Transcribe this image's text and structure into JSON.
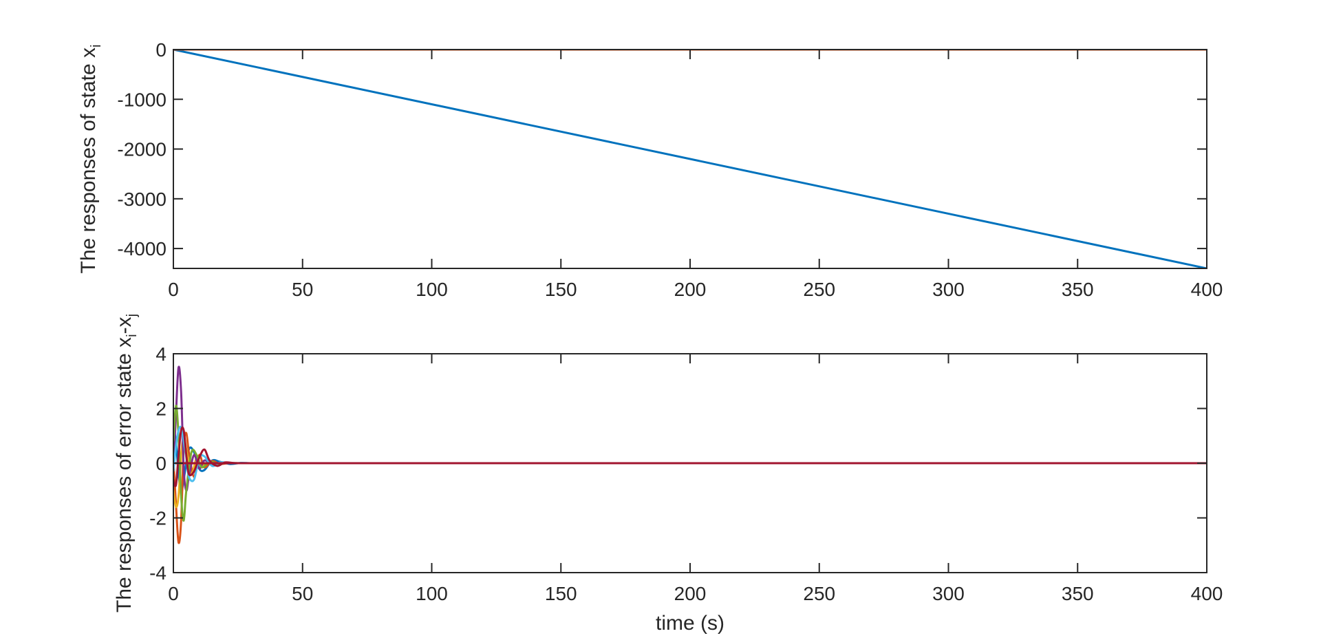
{
  "chart_data": [
    {
      "type": "line",
      "title": "",
      "xlabel": "",
      "ylabel": "The responses of state x",
      "ylabel_subscript": "i",
      "xlim": [
        0,
        400
      ],
      "ylim": [
        -4400,
        0
      ],
      "xticks": [
        0,
        50,
        100,
        150,
        200,
        250,
        300,
        350,
        400
      ],
      "xtick_labels": [
        "0",
        "50",
        "100",
        "150",
        "200",
        "250",
        "300",
        "350",
        "400"
      ],
      "yticks": [
        0,
        -1000,
        -2000,
        -3000,
        -4000
      ],
      "ytick_labels": [
        "0",
        "-1000",
        "-2000",
        "-3000",
        "-4000"
      ],
      "grid": false,
      "series": [
        {
          "color": "#0072BD",
          "x": [
            0,
            400
          ],
          "y": [
            0,
            -4400
          ]
        },
        {
          "color": "#D95319",
          "x": [
            0,
            400
          ],
          "y": [
            0,
            0
          ]
        }
      ]
    },
    {
      "type": "line",
      "title": "",
      "xlabel": "time (s)",
      "ylabel": "The responses of error state x",
      "ylabel_subscript": "i",
      "ylabel_suffix": "-x",
      "ylabel_suffix_subscript": "j",
      "xlim": [
        0,
        400
      ],
      "ylim": [
        -4,
        4
      ],
      "xticks": [
        0,
        50,
        100,
        150,
        200,
        250,
        300,
        350,
        400
      ],
      "xtick_labels": [
        "0",
        "50",
        "100",
        "150",
        "200",
        "250",
        "300",
        "350",
        "400"
      ],
      "yticks": [
        4,
        2,
        0,
        -2,
        -4
      ],
      "ytick_labels": [
        "4",
        "2",
        "0",
        "-2",
        "-4"
      ],
      "grid": false,
      "series": [
        {
          "color": "#0072BD",
          "x": [
            0,
            1,
            2,
            3,
            4,
            6,
            8,
            10,
            12,
            15,
            18,
            22,
            26,
            30,
            35,
            40,
            400
          ],
          "y": [
            1.3,
            0.8,
            -0.4,
            -1.1,
            -0.6,
            0.5,
            0.4,
            -0.2,
            -0.25,
            0.1,
            0.05,
            -0.03,
            0.01,
            0,
            0,
            0,
            0
          ]
        },
        {
          "color": "#D95319",
          "x": [
            0,
            1,
            2,
            3,
            4,
            5,
            6,
            8,
            10,
            12,
            15,
            18,
            22,
            26,
            30,
            400
          ],
          "y": [
            0.2,
            -1.5,
            -2.9,
            -2.1,
            0.6,
            1.1,
            0.4,
            -0.5,
            0.3,
            -0.15,
            0.08,
            -0.03,
            0.01,
            0,
            0,
            0
          ]
        },
        {
          "color": "#EDB120",
          "x": [
            0,
            1,
            2,
            3,
            4,
            5,
            7,
            9,
            11,
            14,
            17,
            20,
            24,
            30,
            400
          ],
          "y": [
            -1.0,
            -1.6,
            -1.2,
            0.3,
            1.0,
            0.5,
            -0.4,
            0.2,
            -0.1,
            0.05,
            -0.02,
            0.01,
            0,
            0,
            0
          ]
        },
        {
          "color": "#7E2F8E",
          "x": [
            0,
            1,
            2,
            3,
            4,
            5,
            6,
            8,
            10,
            12,
            15,
            18,
            22,
            26,
            30,
            400
          ],
          "y": [
            -0.2,
            1.8,
            3.5,
            2.6,
            -0.2,
            -1.0,
            -0.5,
            0.3,
            -0.2,
            0.1,
            -0.04,
            0.02,
            0,
            0,
            0,
            0
          ]
        },
        {
          "color": "#77AC30",
          "x": [
            0,
            1,
            2,
            3,
            4,
            5,
            7,
            9,
            11,
            14,
            17,
            20,
            24,
            30,
            400
          ],
          "y": [
            0.8,
            2.1,
            1.0,
            -1.2,
            -2.1,
            -1.0,
            0.4,
            0.3,
            -0.15,
            0.06,
            -0.02,
            0.01,
            0,
            0,
            0
          ]
        },
        {
          "color": "#4DBEEE",
          "x": [
            0,
            1,
            2,
            3,
            4,
            5,
            6,
            8,
            10,
            12,
            15,
            18,
            22,
            26,
            30,
            400
          ],
          "y": [
            -0.3,
            0.6,
            1.2,
            1.3,
            0.8,
            0.2,
            -0.5,
            -0.6,
            0.2,
            0.25,
            -0.1,
            0.03,
            0.01,
            0,
            0,
            0
          ]
        },
        {
          "color": "#A2142F",
          "x": [
            0,
            1,
            2,
            3,
            4,
            5,
            6,
            8,
            10,
            12,
            14,
            17,
            20,
            24,
            30,
            400
          ],
          "y": [
            -0.6,
            -0.8,
            0.3,
            1.2,
            1.2,
            0.3,
            -0.4,
            -0.3,
            0.2,
            0.5,
            0.1,
            -0.1,
            0.03,
            0,
            0,
            0
          ]
        }
      ]
    }
  ]
}
